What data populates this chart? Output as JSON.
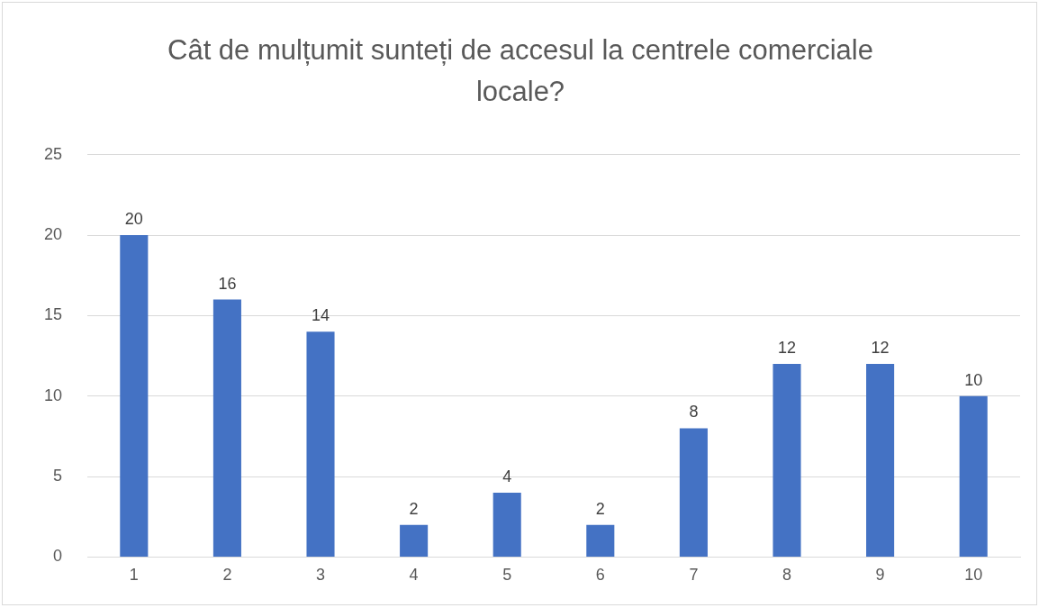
{
  "chart_data": {
    "type": "bar",
    "title": "Cât de mulțumit sunteți de accesul la centrele comerciale locale?",
    "categories": [
      "1",
      "2",
      "3",
      "4",
      "5",
      "6",
      "7",
      "8",
      "9",
      "10"
    ],
    "values": [
      20,
      16,
      14,
      2,
      4,
      2,
      8,
      12,
      12,
      10
    ],
    "color": "#4472c4",
    "ylim": [
      0,
      25
    ],
    "yticks": [
      0,
      5,
      10,
      15,
      20,
      25
    ],
    "grid": "y",
    "data_labels": true
  }
}
